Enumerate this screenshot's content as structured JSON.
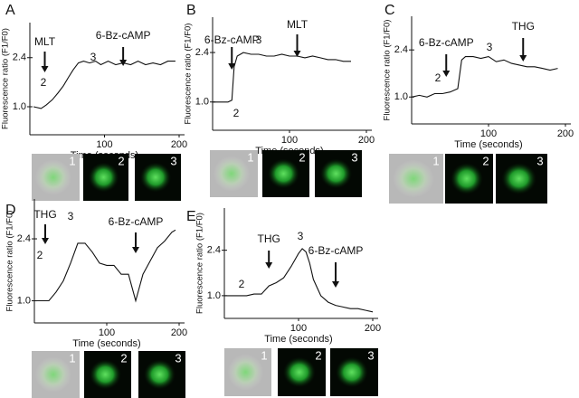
{
  "chart_data": [
    {
      "type": "line",
      "panel": "A",
      "x_label": "Time (seconds)",
      "y_label": "Fluorescence ratio (F1/F0)",
      "x": [
        5,
        15,
        22,
        30,
        38,
        45,
        52,
        58,
        65,
        72,
        80,
        88,
        95,
        105,
        115,
        125,
        135,
        145,
        155,
        165,
        175,
        185,
        195
      ],
      "values": [
        1.0,
        0.95,
        1.05,
        1.2,
        1.4,
        1.6,
        1.85,
        2.05,
        2.25,
        2.3,
        2.25,
        2.3,
        2.2,
        2.3,
        2.2,
        2.25,
        2.2,
        2.3,
        2.2,
        2.25,
        2.2,
        2.3,
        2.3
      ],
      "color": "#111111",
      "xlim": [
        0,
        200
      ],
      "xticks": [
        100,
        200
      ],
      "ylim": [
        0.2,
        3.4
      ],
      "yticks": [
        {
          "value": 1,
          "label": "1.0"
        },
        2.4
      ],
      "arrows": [
        {
          "label": "MLT",
          "x": 20
        },
        {
          "label": "6-Bz-cAMP",
          "x": 125
        }
      ],
      "states": [
        "2",
        "3"
      ],
      "image_labels": [
        "1",
        "2",
        "3"
      ]
    },
    {
      "type": "line",
      "panel": "B",
      "x_label": "Time (seconds)",
      "y_label": "Fluorescence ratio (F1/F0)",
      "x": [
        0,
        10,
        20,
        25,
        28,
        32,
        40,
        50,
        60,
        70,
        80,
        90,
        100,
        110,
        120,
        130,
        140,
        150,
        160,
        170,
        180
      ],
      "values": [
        1.0,
        1.0,
        1.0,
        1.05,
        2.0,
        2.3,
        2.4,
        2.35,
        2.35,
        2.3,
        2.3,
        2.35,
        2.3,
        2.3,
        2.25,
        2.3,
        2.25,
        2.2,
        2.2,
        2.15,
        2.15
      ],
      "color": "#111111",
      "xlim": [
        0,
        200
      ],
      "xticks": [
        100,
        200
      ],
      "ylim": [
        0.2,
        3.4
      ],
      "yticks": [
        {
          "value": 1,
          "label": "1.0"
        },
        2.4
      ],
      "arrows": [
        {
          "label": "6-Bz-cAMP",
          "x": 25
        },
        {
          "label": "MLT",
          "x": 110
        }
      ],
      "states": [
        "2",
        "3"
      ],
      "image_labels": [
        "1",
        "2",
        "3"
      ]
    },
    {
      "type": "line",
      "panel": "C",
      "x_label": "Time (seconds)",
      "y_label": "Fluorescence ratio (F1/F0)",
      "x": [
        0,
        10,
        20,
        30,
        40,
        50,
        60,
        65,
        70,
        80,
        90,
        100,
        110,
        120,
        130,
        140,
        150,
        160,
        170,
        180,
        190
      ],
      "values": [
        1.0,
        1.05,
        1.0,
        1.1,
        1.1,
        1.15,
        1.25,
        2.1,
        2.2,
        2.2,
        2.15,
        2.2,
        2.05,
        2.1,
        2.0,
        1.95,
        1.9,
        1.9,
        1.85,
        1.8,
        1.85
      ],
      "color": "#111111",
      "xlim": [
        0,
        200
      ],
      "xticks": [
        100,
        200
      ],
      "ylim": [
        0.2,
        3.4
      ],
      "yticks": [
        {
          "value": 1,
          "label": "1.0"
        },
        2.4
      ],
      "arrows": [
        {
          "label": "6-Bz-cAMP",
          "x": 45
        },
        {
          "label": "THG",
          "x": 145
        }
      ],
      "states": [
        "2",
        "3"
      ],
      "image_labels": [
        "1",
        "2",
        "3"
      ]
    },
    {
      "type": "line",
      "panel": "D",
      "x_label": "Time (seconds)",
      "y_label": "Fluorescence ratio (F1/F0)",
      "x": [
        0,
        10,
        20,
        30,
        40,
        50,
        60,
        70,
        80,
        90,
        100,
        110,
        120,
        130,
        140,
        145,
        150,
        160,
        170,
        180,
        190,
        195
      ],
      "values": [
        1.0,
        1.0,
        1.0,
        1.2,
        1.45,
        1.85,
        2.3,
        2.3,
        2.1,
        1.85,
        1.8,
        1.8,
        1.6,
        1.6,
        1.0,
        1.3,
        1.6,
        1.9,
        2.2,
        2.35,
        2.55,
        2.6
      ],
      "color": "#111111",
      "xlim": [
        0,
        200
      ],
      "xticks": [
        100,
        200
      ],
      "ylim": [
        0.5,
        3.3
      ],
      "yticks": [
        {
          "value": 1,
          "label": "1.0"
        },
        2.4
      ],
      "arrows": [
        {
          "label": "THG",
          "x": 15
        },
        {
          "label": "6-Bz-cAMP",
          "x": 140
        }
      ],
      "states": [
        "2",
        "3"
      ],
      "image_labels": [
        "1",
        "2",
        "3"
      ]
    },
    {
      "type": "line",
      "panel": "E",
      "x_label": "Time (seconds)",
      "y_label": "Fluorescence ratio (F1/F0)",
      "x": [
        0,
        10,
        20,
        30,
        40,
        50,
        60,
        70,
        80,
        90,
        100,
        105,
        110,
        115,
        120,
        130,
        140,
        150,
        160,
        170,
        180,
        190,
        200
      ],
      "values": [
        1.0,
        1.0,
        1.0,
        1.0,
        1.05,
        1.05,
        1.3,
        1.4,
        1.55,
        1.9,
        2.3,
        2.45,
        2.35,
        2.0,
        1.5,
        1.0,
        0.8,
        0.7,
        0.65,
        0.6,
        0.6,
        0.55,
        0.5
      ],
      "color": "#111111",
      "xlim": [
        0,
        200
      ],
      "xticks": [
        100,
        200
      ],
      "ylim": [
        0.3,
        3.7
      ],
      "yticks": [
        {
          "value": 1,
          "label": "1.0"
        },
        2.4
      ],
      "arrows": [
        {
          "label": "THG",
          "x": 60
        },
        {
          "label": "6-Bz-cAMP",
          "x": 150
        }
      ],
      "states": [
        "2",
        "3"
      ],
      "image_labels": [
        "1",
        "2",
        "3"
      ]
    }
  ]
}
